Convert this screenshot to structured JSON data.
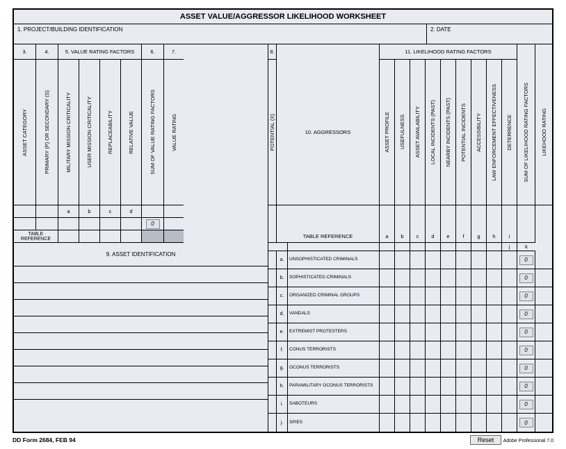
{
  "title": "ASSET VALUE/AGGRESSOR LIKELIHOOD WORKSHEET",
  "sec1": "1.  PROJECT/BUILDING IDENTIFICATION",
  "sec2": "2.  DATE",
  "sec3": "3.",
  "sec4": "4.",
  "sec5": "5.  VALUE RATING FACTORS",
  "sec6": "6.",
  "sec7": "7.",
  "sec8": "8.",
  "sec9": "9.  ASSET IDENTIFICATION",
  "sec10": "10.  AGGRESSORS",
  "sec11": "11.  LIKELIHOOD RATING FACTORS",
  "vcol": {
    "c3": "ASSET CATEGORY",
    "c4": "PRIMARY (P) OR SECONDARY (S)",
    "c5a": "MILITARY MISSION CRITICALITY",
    "c5b": "USER MISSION CRITICALITY",
    "c5c": "REPLACEABILITY",
    "c5d": "RELATIVE VALUE",
    "c6": "SUM OF VALUE RATING FACTORS",
    "c7": "VALUE RATING",
    "c8": "POTENTIAL (X)",
    "r11a": "ASSET PROFILE",
    "r11b": "USEFULNESS",
    "r11c": "ASSET AVAILABILITY",
    "r11d": "LOCAL INCIDENTS (PAST)",
    "r11e": "NEARBY INCIDENTS (PAST)",
    "r11f": "POTENTIAL INCIDENTS",
    "r11g": "ACCESSIBILITY",
    "r11h": "LAW ENFORCEMENT EFFECTIVENESS",
    "r11i": "DETERRENCE",
    "rj": "SUM OF LIKELIHOOD RATING FACTORS",
    "rk": "LIKEHOOD RATING"
  },
  "letters": {
    "a": "a",
    "b": "b",
    "c": "c",
    "d": "d",
    "e": "e",
    "f": "f",
    "g": "g",
    "h": "h",
    "i": "i",
    "j": "j",
    "k": "k"
  },
  "tableref": "TABLE REFERENCE",
  "zero": "0",
  "aggressors": [
    {
      "l": "a.",
      "name": "UNSOPHISTICATED CRIMINALS"
    },
    {
      "l": "b.",
      "name": "SOPHISTICATED CRIMINALS"
    },
    {
      "l": "c.",
      "name": "ORGANIZED CRIMINAL GROUPS"
    },
    {
      "l": "d.",
      "name": "VANDALS"
    },
    {
      "l": "e.",
      "name": "EXTREMIST PROTESTERS"
    },
    {
      "l": "f.",
      "name": "CONUS TERRORISTS"
    },
    {
      "l": "g.",
      "name": "OCONUS TERRORISTS"
    },
    {
      "l": "h.",
      "name": "PARAMILITARY OCONUS TERRORISTS"
    },
    {
      "l": "i.",
      "name": "SABOTEURS"
    },
    {
      "l": "j.",
      "name": "SPIES"
    }
  ],
  "formnum": "DD Form 2684, FEB 94",
  "reset": "Reset",
  "adobe": "Adobe Professional 7.0"
}
